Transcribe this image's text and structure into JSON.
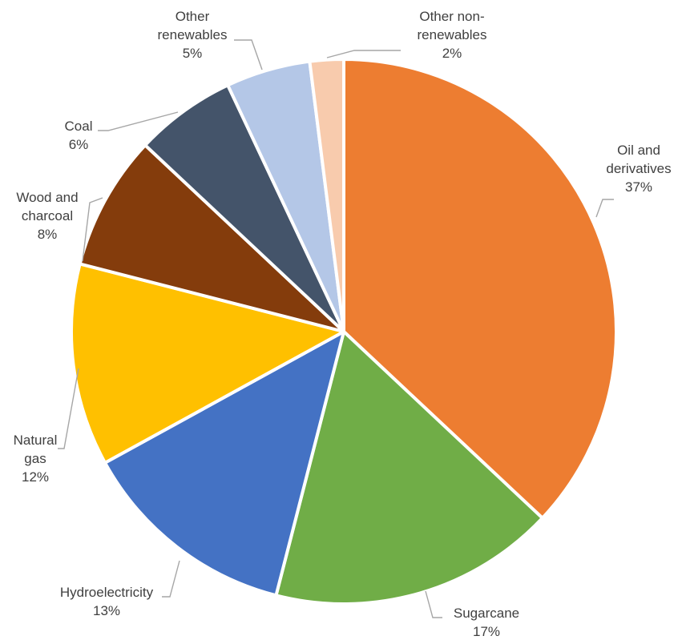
{
  "chart_data": {
    "type": "pie",
    "title": "",
    "start_angle_deg": 0,
    "direction": "clockwise",
    "slices": [
      {
        "label": [
          "Oil and",
          "derivatives"
        ],
        "value_label": "37%",
        "value": 37,
        "color": "#ED7D31"
      },
      {
        "label": [
          "Sugarcane"
        ],
        "value_label": "17%",
        "value": 17,
        "color": "#70AD47"
      },
      {
        "label": [
          "Hydroelectricity"
        ],
        "value_label": "13%",
        "value": 13,
        "color": "#4472C4"
      },
      {
        "label": [
          "Natural",
          "gas"
        ],
        "value_label": "12%",
        "value": 12,
        "color": "#FFC000"
      },
      {
        "label": [
          "Wood and",
          "charcoal"
        ],
        "value_label": "8%",
        "value": 8,
        "color": "#843C0C"
      },
      {
        "label": [
          "Coal"
        ],
        "value_label": "6%",
        "value": 6,
        "color": "#44546A"
      },
      {
        "label": [
          "Other",
          "renewables"
        ],
        "value_label": "5%",
        "value": 5,
        "color": "#B4C7E7"
      },
      {
        "label": [
          "Other non-",
          "renewables"
        ],
        "value_label": "2%",
        "value": 2,
        "color": "#F8CBAD"
      }
    ]
  }
}
